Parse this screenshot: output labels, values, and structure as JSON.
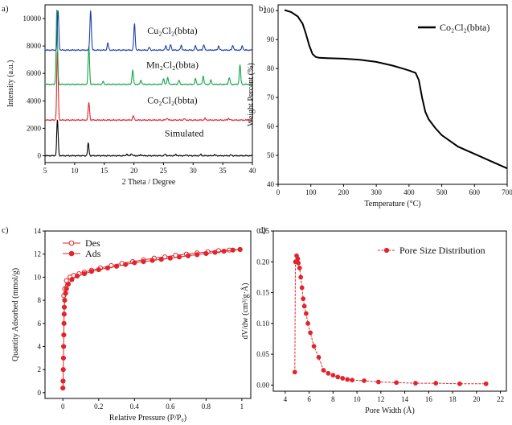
{
  "panels": {
    "a": "a)",
    "b": "b)",
    "c": "c)",
    "d": "d)"
  },
  "colors": {
    "blue": "#1f3fa8",
    "green": "#16a34a",
    "red": "#e0262b",
    "black": "#000000"
  },
  "chart_data": [
    {
      "panel": "a",
      "type": "line",
      "xlabel": "2 Theta / Degree",
      "ylabel": "Intensity (a.u.)",
      "xlim": [
        5,
        40
      ],
      "ylim": [
        -500,
        11000
      ],
      "xticks": [
        5,
        10,
        15,
        20,
        25,
        30,
        35,
        40
      ],
      "yticks": [
        0,
        2000,
        4000,
        6000,
        8000,
        10000
      ],
      "series": [
        {
          "name": "Simulated",
          "color": "#000000",
          "baseline": 0,
          "peaks": [
            [
              7.1,
              2600
            ],
            [
              12.3,
              900
            ],
            [
              18.8,
              120
            ],
            [
              19.6,
              150
            ],
            [
              21.2,
              80
            ],
            [
              25.3,
              110
            ],
            [
              27.1,
              90
            ],
            [
              28.9,
              70
            ],
            [
              31.3,
              90
            ],
            [
              33.6,
              70
            ],
            [
              36.4,
              60
            ]
          ]
        },
        {
          "name": "Co2Cl2(bbta)",
          "color": "#e0262b",
          "baseline": 2600,
          "peaks": [
            [
              7.1,
              5000
            ],
            [
              12.4,
              1300
            ],
            [
              19.9,
              300
            ],
            [
              25.6,
              150
            ],
            [
              28.5,
              100
            ],
            [
              32.0,
              120
            ],
            [
              36.0,
              120
            ]
          ]
        },
        {
          "name": "Mn2Cl2(bbta)",
          "color": "#16a34a",
          "baseline": 5200,
          "peaks": [
            [
              7.0,
              5400
            ],
            [
              12.4,
              2800
            ],
            [
              14.8,
              200
            ],
            [
              19.8,
              1000
            ],
            [
              21.2,
              300
            ],
            [
              25.0,
              400
            ],
            [
              25.7,
              500
            ],
            [
              27.6,
              300
            ],
            [
              30.4,
              400
            ],
            [
              31.7,
              600
            ],
            [
              33.0,
              300
            ],
            [
              36.1,
              500
            ],
            [
              37.9,
              1400
            ]
          ]
        },
        {
          "name": "Cu2Cl2(bbta)",
          "color": "#1f3fa8",
          "baseline": 7700,
          "peaks": [
            [
              7.2,
              2900
            ],
            [
              12.7,
              2900
            ],
            [
              15.6,
              500
            ],
            [
              20.1,
              1900
            ],
            [
              22.6,
              200
            ],
            [
              25.4,
              300
            ],
            [
              26.2,
              400
            ],
            [
              28.0,
              350
            ],
            [
              30.4,
              300
            ],
            [
              31.8,
              400
            ],
            [
              34.3,
              300
            ],
            [
              36.7,
              350
            ],
            [
              38.3,
              300
            ]
          ]
        }
      ],
      "labels": [
        {
          "text": "Cu₂Cl₂(bbta)",
          "x": 26.5,
          "y": 8900
        },
        {
          "text": "Mn₂Cl₂(bbta)",
          "x": 26.5,
          "y": 6400
        },
        {
          "text": "Co₂Cl₂(bbta)",
          "x": 26.5,
          "y": 3800
        },
        {
          "text": "Simulated",
          "x": 28.5,
          "y": 1400
        }
      ]
    },
    {
      "panel": "b",
      "type": "line",
      "xlabel": "Temperature (°C)",
      "ylabel": "Weight Percent (%)",
      "xlim": [
        0,
        700
      ],
      "ylim": [
        40,
        102
      ],
      "xticks": [
        0,
        100,
        200,
        300,
        400,
        500,
        600,
        700
      ],
      "yticks": [
        40,
        50,
        60,
        70,
        80,
        90,
        100
      ],
      "series": [
        {
          "name": "Co₂Cl₂(bbta)",
          "color": "#000000",
          "x": [
            20,
            40,
            60,
            75,
            85,
            95,
            105,
            115,
            125,
            150,
            200,
            250,
            300,
            350,
            380,
            400,
            420,
            430,
            440,
            450,
            460,
            480,
            500,
            550,
            600,
            650,
            700
          ],
          "y": [
            100.2,
            99.5,
            98.0,
            95.5,
            92.0,
            88.0,
            85.0,
            84.0,
            83.7,
            83.6,
            83.4,
            83.0,
            82.3,
            81.0,
            80.0,
            79.3,
            78.5,
            76.0,
            70.0,
            65.0,
            62.5,
            59.5,
            57.0,
            53.0,
            50.5,
            48.0,
            45.5
          ]
        }
      ]
    },
    {
      "panel": "c",
      "type": "line",
      "xlabel": "Relative Pressure (P/P₀)",
      "ylabel": "Quantity Adsorbed (mmol/g)",
      "xlim": [
        -0.1,
        1.05
      ],
      "ylim": [
        -0.5,
        14
      ],
      "xticks": [
        0.0,
        0.2,
        0.4,
        0.6,
        0.8,
        1.0
      ],
      "yticks": [
        0,
        2,
        4,
        6,
        8,
        10,
        12,
        14
      ],
      "series": [
        {
          "name": "Des",
          "marker": "open",
          "color": "#e0262b",
          "x": [
            0.99,
            0.93,
            0.87,
            0.81,
            0.75,
            0.69,
            0.63,
            0.57,
            0.51,
            0.45,
            0.39,
            0.33,
            0.27,
            0.21,
            0.16,
            0.12,
            0.09,
            0.06,
            0.04,
            0.02,
            0.01,
            0.005
          ],
          "y": [
            12.4,
            12.35,
            12.3,
            12.2,
            12.1,
            12.0,
            11.9,
            11.75,
            11.65,
            11.5,
            11.35,
            11.2,
            11.0,
            10.8,
            10.6,
            10.45,
            10.3,
            10.15,
            10.0,
            9.7,
            9.0,
            8.4
          ]
        },
        {
          "name": "Ads",
          "marker": "filled",
          "color": "#e0262b",
          "x": [
            0.0,
            0.001,
            0.002,
            0.003,
            0.004,
            0.005,
            0.006,
            0.007,
            0.008,
            0.01,
            0.015,
            0.02,
            0.03,
            0.05,
            0.08,
            0.12,
            0.16,
            0.2,
            0.25,
            0.3,
            0.35,
            0.4,
            0.45,
            0.5,
            0.55,
            0.6,
            0.65,
            0.7,
            0.75,
            0.8,
            0.85,
            0.9,
            0.95,
            0.99
          ],
          "y": [
            0.4,
            1.0,
            2.0,
            3.0,
            4.0,
            5.0,
            6.0,
            6.8,
            7.4,
            8.0,
            8.6,
            9.0,
            9.4,
            9.8,
            10.1,
            10.3,
            10.5,
            10.65,
            10.8,
            10.95,
            11.1,
            11.25,
            11.35,
            11.45,
            11.55,
            11.65,
            11.75,
            11.85,
            11.95,
            12.05,
            12.15,
            12.25,
            12.35,
            12.4
          ]
        }
      ]
    },
    {
      "panel": "d",
      "type": "line",
      "xlabel": "Pore Width (Å)",
      "ylabel": "dV/dw (cm³/g·Å)",
      "xlim": [
        3,
        22.5
      ],
      "ylim": [
        -0.01,
        0.25
      ],
      "xticks": [
        4,
        6,
        8,
        10,
        12,
        14,
        16,
        18,
        20,
        22
      ],
      "yticks": [
        0.0,
        0.05,
        0.1,
        0.15,
        0.2,
        0.25
      ],
      "series": [
        {
          "name": "Pore Size Distribution",
          "color": "#e0262b",
          "x": [
            4.8,
            4.85,
            4.95,
            5.0,
            5.05,
            5.1,
            5.2,
            5.3,
            5.4,
            5.5,
            5.6,
            5.75,
            5.9,
            6.1,
            6.4,
            6.8,
            7.2,
            7.6,
            8.0,
            8.4,
            8.8,
            9.2,
            9.6,
            10.6,
            11.8,
            13.3,
            14.9,
            16.6,
            18.6,
            20.8
          ],
          "y": [
            0.021,
            0.2,
            0.21,
            0.2,
            0.205,
            0.198,
            0.19,
            0.175,
            0.158,
            0.14,
            0.128,
            0.116,
            0.1,
            0.085,
            0.063,
            0.045,
            0.024,
            0.019,
            0.016,
            0.013,
            0.011,
            0.009,
            0.008,
            0.007,
            0.005,
            0.004,
            0.003,
            0.003,
            0.002,
            0.002
          ]
        }
      ]
    }
  ]
}
